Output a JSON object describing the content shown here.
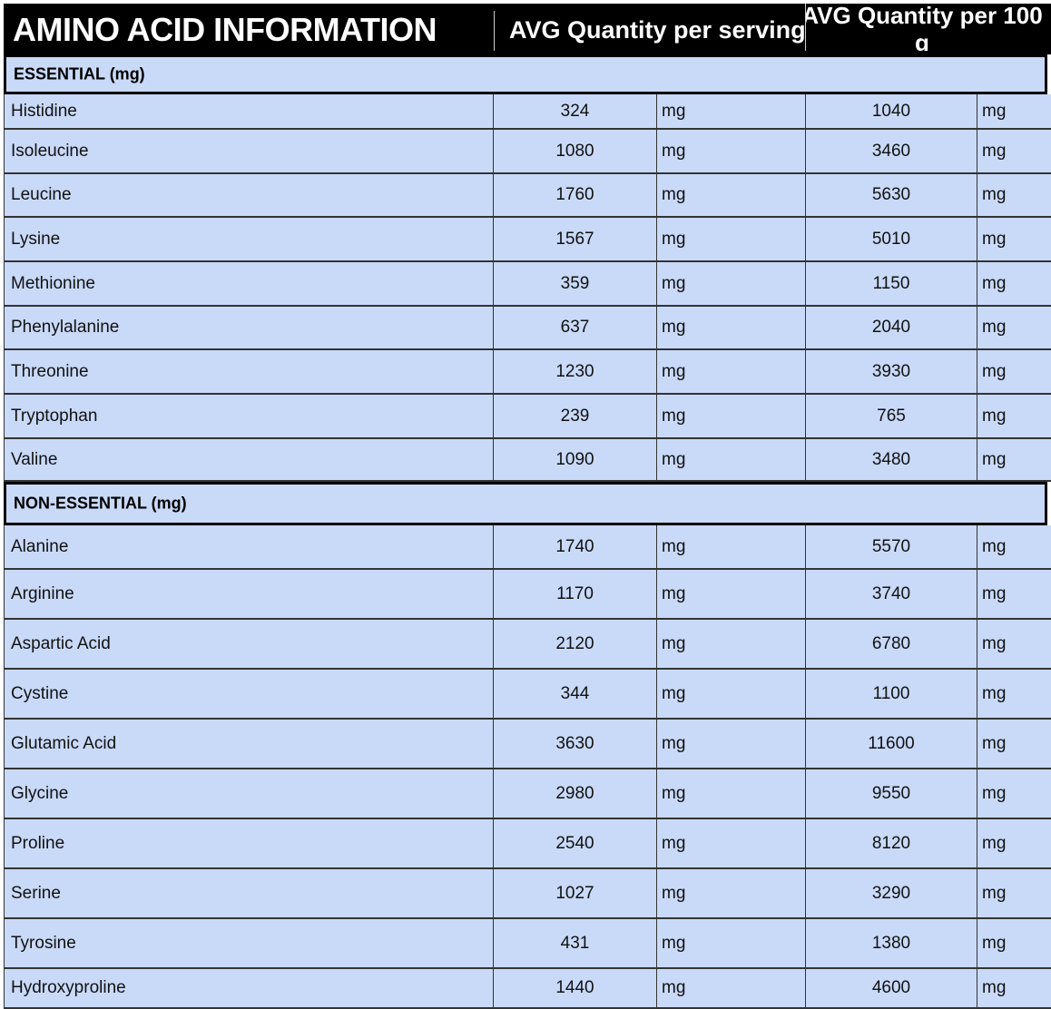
{
  "header": {
    "title": "AMINO ACID INFORMATION",
    "col_serving": "AVG Quantity per serving",
    "col_100g": "AVG Quantity per 100 g"
  },
  "sections": [
    {
      "label": "ESSENTIAL (mg)",
      "rows": [
        {
          "name": "Histidine",
          "serving": "324",
          "serving_unit": "mg",
          "per100": "1040",
          "per100_unit": "mg"
        },
        {
          "name": "Isoleucine",
          "serving": "1080",
          "serving_unit": "mg",
          "per100": "3460",
          "per100_unit": "mg"
        },
        {
          "name": "Leucine",
          "serving": "1760",
          "serving_unit": "mg",
          "per100": "5630",
          "per100_unit": "mg"
        },
        {
          "name": "Lysine",
          "serving": "1567",
          "serving_unit": "mg",
          "per100": "5010",
          "per100_unit": "mg"
        },
        {
          "name": "Methionine",
          "serving": "359",
          "serving_unit": "mg",
          "per100": "1150",
          "per100_unit": "mg"
        },
        {
          "name": "Phenylalanine",
          "serving": "637",
          "serving_unit": "mg",
          "per100": "2040",
          "per100_unit": "mg"
        },
        {
          "name": "Threonine",
          "serving": "1230",
          "serving_unit": "mg",
          "per100": "3930",
          "per100_unit": "mg"
        },
        {
          "name": "Tryptophan",
          "serving": "239",
          "serving_unit": "mg",
          "per100": "765",
          "per100_unit": "mg"
        },
        {
          "name": "Valine",
          "serving": "1090",
          "serving_unit": "mg",
          "per100": "3480",
          "per100_unit": "mg"
        }
      ]
    },
    {
      "label": "NON-ESSENTIAL (mg)",
      "rows": [
        {
          "name": "Alanine",
          "serving": "1740",
          "serving_unit": "mg",
          "per100": "5570",
          "per100_unit": "mg"
        },
        {
          "name": "Arginine",
          "serving": "1170",
          "serving_unit": "mg",
          "per100": "3740",
          "per100_unit": "mg"
        },
        {
          "name": "Aspartic Acid",
          "serving": "2120",
          "serving_unit": "mg",
          "per100": "6780",
          "per100_unit": "mg"
        },
        {
          "name": "Cystine",
          "serving": "344",
          "serving_unit": "mg",
          "per100": "1100",
          "per100_unit": "mg"
        },
        {
          "name": "Glutamic Acid",
          "serving": "3630",
          "serving_unit": "mg",
          "per100": "11600",
          "per100_unit": "mg"
        },
        {
          "name": "Glycine",
          "serving": "2980",
          "serving_unit": "mg",
          "per100": "9550",
          "per100_unit": "mg"
        },
        {
          "name": "Proline",
          "serving": "2540",
          "serving_unit": "mg",
          "per100": "8120",
          "per100_unit": "mg"
        },
        {
          "name": "Serine",
          "serving": "1027",
          "serving_unit": "mg",
          "per100": "3290",
          "per100_unit": "mg"
        },
        {
          "name": "Tyrosine",
          "serving": "431",
          "serving_unit": "mg",
          "per100": "1380",
          "per100_unit": "mg"
        },
        {
          "name": "Hydroxyproline",
          "serving": "1440",
          "serving_unit": "mg",
          "per100": "4600",
          "per100_unit": "mg"
        }
      ]
    }
  ]
}
